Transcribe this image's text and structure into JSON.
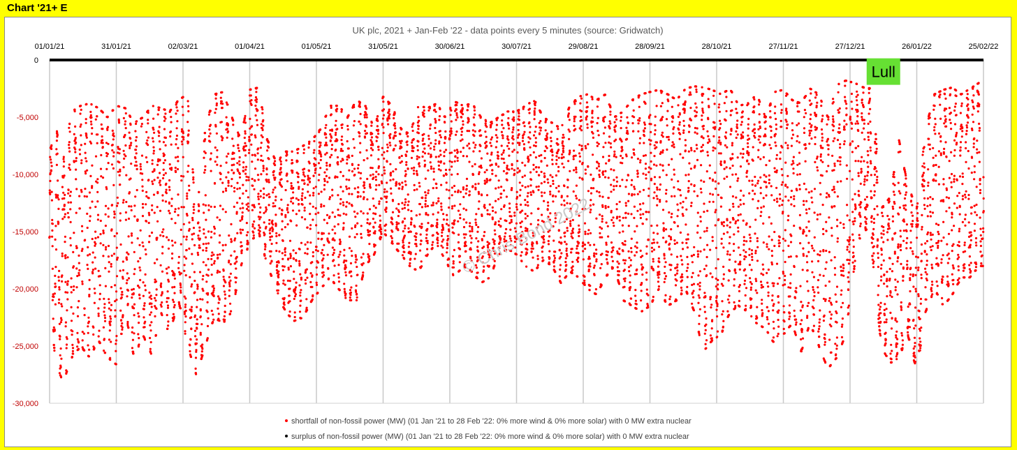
{
  "page": {
    "label": "Chart '21+ E"
  },
  "colors": {
    "background": "#ffff00",
    "shortfall": "#ff0000",
    "surplus": "#000000",
    "lull": "#66e033"
  },
  "chart_data": {
    "type": "scatter",
    "title": "UK plc, 2021 + Jan-Feb '22 - data points every 5 minutes (source: Gridwatch)",
    "x_tick_labels": [
      "01/01/21",
      "31/01/21",
      "02/03/21",
      "01/04/21",
      "01/05/21",
      "31/05/21",
      "30/06/21",
      "30/07/21",
      "29/08/21",
      "28/09/21",
      "28/10/21",
      "27/11/21",
      "27/12/21",
      "26/01/22",
      "25/02/22"
    ],
    "x_tick_days": [
      0,
      30,
      60,
      90,
      120,
      150,
      180,
      210,
      240,
      270,
      300,
      330,
      360,
      390,
      420
    ],
    "x_range_days": [
      0,
      420
    ],
    "y_tick_labels": [
      "0",
      "-5,000",
      "-10,000",
      "-15,000",
      "-20,000",
      "-25,000",
      "-30,000"
    ],
    "y_ticks": [
      0,
      -5000,
      -10000,
      -15000,
      -20000,
      -25000,
      -30000
    ],
    "ylim": [
      -30000,
      0
    ],
    "grid": "vertical",
    "legend": "bottom",
    "series": [
      {
        "name": "shortfall of non-fossil power (MW) (01 Jan '21 to 28 Feb '22: 0% more wind & 0% more solar) with 0 MW extra nuclear",
        "color": "#ff0000",
        "envelope_days": [
          0,
          3,
          6,
          10,
          14,
          18,
          22,
          26,
          30,
          34,
          38,
          42,
          46,
          50,
          54,
          58,
          62,
          66,
          70,
          74,
          78,
          82,
          86,
          90,
          94,
          98,
          102,
          106,
          110,
          114,
          118,
          122,
          126,
          130,
          134,
          138,
          142,
          146,
          150,
          154,
          158,
          162,
          166,
          170,
          174,
          178,
          182,
          186,
          190,
          194,
          198,
          202,
          206,
          210,
          214,
          218,
          222,
          226,
          230,
          234,
          238,
          242,
          246,
          250,
          254,
          258,
          262,
          266,
          270,
          274,
          278,
          282,
          286,
          290,
          294,
          298,
          302,
          306,
          310,
          314,
          318,
          322,
          326,
          330,
          334,
          338,
          342,
          346,
          350,
          354,
          358,
          362,
          366,
          370,
          374,
          378,
          382,
          386,
          390,
          394,
          398,
          402,
          406,
          410,
          414,
          418
        ],
        "envelope_upper": [
          -8000,
          -6000,
          -9000,
          -4500,
          -4000,
          -3800,
          -4200,
          -5000,
          -4000,
          -4200,
          -5500,
          -5000,
          -4000,
          -4200,
          -4500,
          -3500,
          -3000,
          -14000,
          -6000,
          -3000,
          -2800,
          -5000,
          -7000,
          -2600,
          -2400,
          -7000,
          -9000,
          -8000,
          -8000,
          -7500,
          -7000,
          -6000,
          -4000,
          -4000,
          -5000,
          -3500,
          -4000,
          -6000,
          -3200,
          -4000,
          -6000,
          -6500,
          -4000,
          -4200,
          -3800,
          -5000,
          -3600,
          -4000,
          -3800,
          -5000,
          -5500,
          -5000,
          -4500,
          -4500,
          -4000,
          -3500,
          -5000,
          -5500,
          -6000,
          -4000,
          -3200,
          -3000,
          -3500,
          -3000,
          -5000,
          -4500,
          -3500,
          -3000,
          -2800,
          -2600,
          -3000,
          -3500,
          -2500,
          -2300,
          -2400,
          -2600,
          -3000,
          -2500,
          -4000,
          -3800,
          -3000,
          -5000,
          -2800,
          -2600,
          -3500,
          -3800,
          -2500,
          -3000,
          -5000,
          -2200,
          -1800,
          -2000,
          -2400,
          -2500,
          -13000,
          -12000,
          -7000,
          -11000,
          -13000,
          -6000,
          -3000,
          -2600,
          -2400,
          -3000,
          -2500,
          -2000
        ],
        "envelope_lower": [
          -22000,
          -26500,
          -28200,
          -26000,
          -25000,
          -26000,
          -24500,
          -26000,
          -26600,
          -22000,
          -26000,
          -24000,
          -25800,
          -22000,
          -24000,
          -21000,
          -25000,
          -27500,
          -25000,
          -22500,
          -23000,
          -22000,
          -18000,
          -16000,
          -15000,
          -18000,
          -20000,
          -22000,
          -22800,
          -22500,
          -21000,
          -20000,
          -19000,
          -20000,
          -21000,
          -21000,
          -18000,
          -17000,
          -15000,
          -16000,
          -17000,
          -18000,
          -18500,
          -17000,
          -16000,
          -17500,
          -19000,
          -18000,
          -18500,
          -19500,
          -19000,
          -17000,
          -16500,
          -17000,
          -18000,
          -18500,
          -17500,
          -18000,
          -19500,
          -18500,
          -19000,
          -20000,
          -20500,
          -19000,
          -18000,
          -21000,
          -21500,
          -22000,
          -21500,
          -20000,
          -21500,
          -21000,
          -20000,
          -22000,
          -25500,
          -24500,
          -24000,
          -22000,
          -21500,
          -22000,
          -23000,
          -23500,
          -24800,
          -24000,
          -23000,
          -25500,
          -23000,
          -25000,
          -27000,
          -26000,
          -24000,
          -18000,
          -14000,
          -17000,
          -25000,
          -26500,
          -26000,
          -24000,
          -27200,
          -22000,
          -20000,
          -21500,
          -20500,
          -19000,
          -19000,
          -18000
        ]
      },
      {
        "name": "surplus of non-fossil power (MW) (01 Jan '21 to 28 Feb '22: 0% more wind & 0% more solar) with 0 MW extra nuclear",
        "color": "#000000",
        "value": 0
      }
    ],
    "annotations": [
      {
        "text": "Lull",
        "day": 375,
        "y": -1500
      },
      {
        "text": "© Chris Bond 2022",
        "type": "watermark"
      }
    ]
  }
}
